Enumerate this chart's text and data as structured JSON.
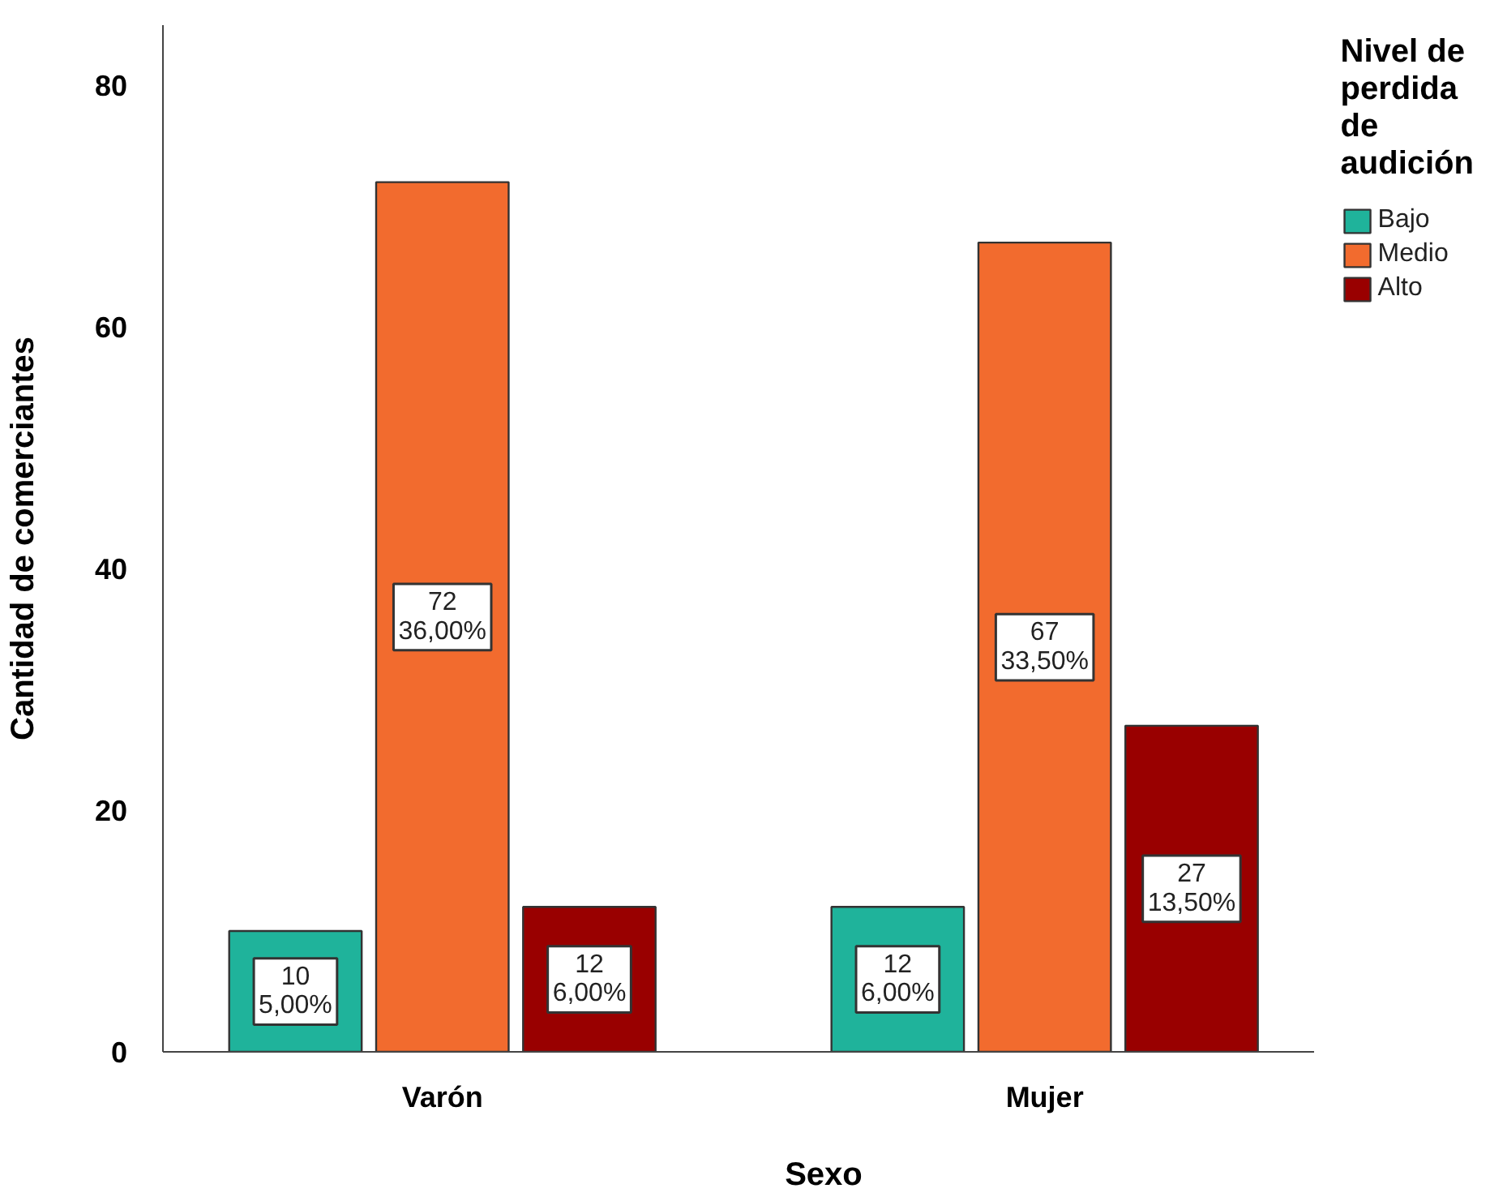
{
  "chart_data": {
    "type": "bar",
    "xlabel": "Sexo",
    "ylabel": "Cantidad de comerciantes",
    "legend_title": "Nivel de perdida de audición",
    "categories": [
      "Varón",
      "Mujer"
    ],
    "series": [
      {
        "name": "Bajo",
        "color": "#1fb39b",
        "values": [
          10,
          12
        ],
        "value_labels": [
          "10\n5,00%",
          "12\n6,00%"
        ]
      },
      {
        "name": "Medio",
        "color": "#f26b2e",
        "values": [
          72,
          67
        ],
        "value_labels": [
          "72\n36,00%",
          "67\n33,50%"
        ]
      },
      {
        "name": "Alto",
        "color": "#990000",
        "values": [
          12,
          27
        ],
        "value_labels": [
          "12\n6,00%",
          "27\n13,50%"
        ]
      }
    ],
    "ylim": [
      0,
      85
    ],
    "yticks": [
      0,
      20,
      40,
      60,
      80
    ],
    "legend": "top right"
  }
}
